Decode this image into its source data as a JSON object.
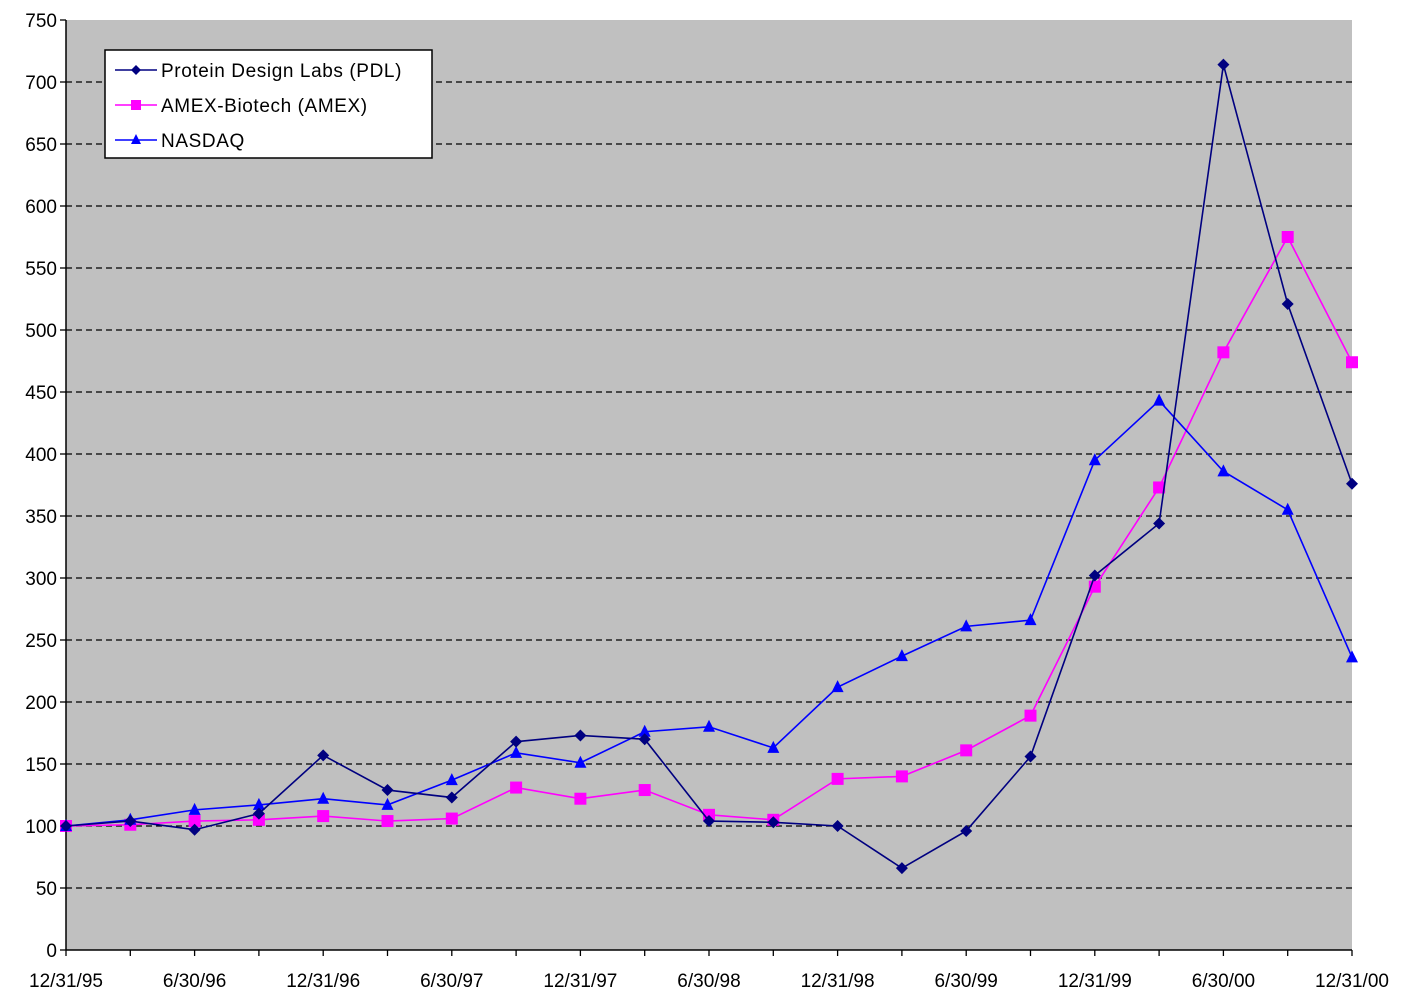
{
  "chart_data": {
    "type": "line",
    "title": "",
    "xlabel": "",
    "ylabel": "",
    "ylim": [
      0,
      750
    ],
    "y_ticks": [
      0,
      50,
      100,
      150,
      200,
      250,
      300,
      350,
      400,
      450,
      500,
      550,
      600,
      650,
      700,
      750
    ],
    "x": [
      "12/31/95",
      "3/31/96",
      "6/30/96",
      "9/30/96",
      "12/31/96",
      "3/31/97",
      "6/30/97",
      "9/30/97",
      "12/31/97",
      "3/31/98",
      "6/30/98",
      "9/30/98",
      "12/31/98",
      "3/31/99",
      "6/30/99",
      "9/30/99",
      "12/31/99",
      "3/31/00",
      "6/30/00",
      "9/30/00",
      "12/31/00"
    ],
    "x_tick_labels": [
      "12/31/95",
      "6/30/96",
      "12/31/96",
      "6/30/97",
      "12/31/97",
      "6/30/98",
      "12/31/98",
      "6/30/99",
      "12/31/99",
      "6/30/00",
      "12/31/00"
    ],
    "grid": {
      "horizontal": true,
      "style": "dashed"
    },
    "plot_background": "#c0c0c0",
    "legend_position": "top-left",
    "series": [
      {
        "name": "Protein Design Labs (PDL)",
        "color": "#000080",
        "marker": "diamond",
        "values": [
          100,
          104,
          97,
          110,
          157,
          129,
          123,
          168,
          173,
          170,
          104,
          103,
          100,
          66,
          96,
          156,
          302,
          344,
          714,
          521,
          376
        ]
      },
      {
        "name": "AMEX-Biotech (AMEX)",
        "color": "#ff00ff",
        "marker": "square",
        "values": [
          100,
          101,
          104,
          105,
          108,
          104,
          106,
          131,
          122,
          129,
          109,
          105,
          138,
          140,
          161,
          189,
          293,
          373,
          482,
          575,
          474
        ]
      },
      {
        "name": "NASDAQ",
        "color": "#0000ff",
        "marker": "triangle",
        "values": [
          100,
          105,
          113,
          117,
          122,
          117,
          137,
          159,
          151,
          176,
          180,
          163,
          212,
          237,
          261,
          266,
          395,
          443,
          386,
          355,
          236
        ]
      }
    ]
  }
}
